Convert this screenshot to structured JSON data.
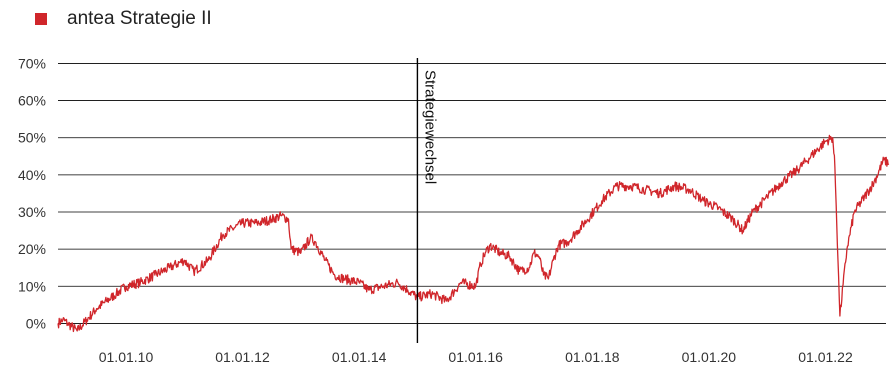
{
  "colors": {
    "series": "#d0262b",
    "title": "#1d5f7a",
    "grid": "#000000",
    "marker": "#000000"
  },
  "chart_data": {
    "type": "line",
    "title": "",
    "xlabel": "",
    "ylabel": "",
    "x_range": [
      "2008-11-01",
      "2023-01-15"
    ],
    "ylim": [
      -5,
      72
    ],
    "y_ticks": [
      0,
      10,
      20,
      30,
      40,
      50,
      60,
      70
    ],
    "y_tick_labels": [
      "0%",
      "10%",
      "20%",
      "30%",
      "40%",
      "50%",
      "60%",
      "70%"
    ],
    "x_ticks": [
      "2010-01-01",
      "2012-01-01",
      "2014-01-01",
      "2016-01-01",
      "2018-01-01",
      "2020-01-01",
      "2022-01-01"
    ],
    "x_tick_labels": [
      "01.01.10",
      "01.01.12",
      "01.01.14",
      "01.01.16",
      "01.01.18",
      "01.01.20",
      "01.01.22"
    ],
    "grid": "horizontal",
    "legend_position": "top-left",
    "annotations": [
      {
        "x": "2015-01-01",
        "label": "Strategiewechsel",
        "orientation": "vertical"
      }
    ],
    "series": [
      {
        "name": "antea Strategie II",
        "points": [
          [
            "2008-11-01",
            0
          ],
          [
            "2008-12-01",
            1
          ],
          [
            "2009-01-01",
            0
          ],
          [
            "2009-03-01",
            -2
          ],
          [
            "2009-05-01",
            1
          ],
          [
            "2009-07-01",
            4
          ],
          [
            "2009-09-01",
            6
          ],
          [
            "2009-11-01",
            8
          ],
          [
            "2010-01-01",
            10
          ],
          [
            "2010-04-01",
            11
          ],
          [
            "2010-07-01",
            13
          ],
          [
            "2010-10-01",
            15
          ],
          [
            "2011-01-01",
            17
          ],
          [
            "2011-03-01",
            14
          ],
          [
            "2011-06-01",
            17
          ],
          [
            "2011-09-01",
            24
          ],
          [
            "2012-01-01",
            27
          ],
          [
            "2012-04-01",
            27
          ],
          [
            "2012-07-01",
            28
          ],
          [
            "2012-09-01",
            29
          ],
          [
            "2012-10-15",
            28
          ],
          [
            "2012-11-01",
            20
          ],
          [
            "2013-01-01",
            19
          ],
          [
            "2013-03-01",
            23
          ],
          [
            "2013-04-01",
            22
          ],
          [
            "2013-06-01",
            17
          ],
          [
            "2013-08-01",
            13
          ],
          [
            "2013-10-01",
            12
          ],
          [
            "2014-01-01",
            11
          ],
          [
            "2014-03-01",
            9
          ],
          [
            "2014-06-01",
            10
          ],
          [
            "2014-09-01",
            11
          ],
          [
            "2014-11-01",
            9
          ],
          [
            "2015-01-01",
            7
          ],
          [
            "2015-04-01",
            8
          ],
          [
            "2015-07-01",
            6
          ],
          [
            "2015-10-01",
            11
          ],
          [
            "2016-01-01",
            10
          ],
          [
            "2016-02-01",
            16
          ],
          [
            "2016-03-01",
            19
          ],
          [
            "2016-04-01",
            21
          ],
          [
            "2016-06-01",
            19
          ],
          [
            "2016-08-01",
            18
          ],
          [
            "2016-10-01",
            14
          ],
          [
            "2016-12-01",
            15
          ],
          [
            "2017-01-01",
            19
          ],
          [
            "2017-02-01",
            18
          ],
          [
            "2017-03-01",
            13
          ],
          [
            "2017-04-01",
            12
          ],
          [
            "2017-05-01",
            17
          ],
          [
            "2017-06-01",
            21
          ],
          [
            "2017-08-01",
            22
          ],
          [
            "2017-10-01",
            25
          ],
          [
            "2017-12-01",
            28
          ],
          [
            "2018-03-01",
            33
          ],
          [
            "2018-06-01",
            37
          ],
          [
            "2018-09-01",
            37
          ],
          [
            "2018-12-01",
            36
          ],
          [
            "2019-03-01",
            35
          ],
          [
            "2019-06-01",
            37
          ],
          [
            "2019-09-01",
            36
          ],
          [
            "2019-12-01",
            33
          ],
          [
            "2020-03-01",
            31
          ],
          [
            "2020-06-01",
            28
          ],
          [
            "2020-08-01",
            25
          ],
          [
            "2020-10-01",
            30
          ],
          [
            "2021-01-01",
            34
          ],
          [
            "2021-04-01",
            38
          ],
          [
            "2021-07-01",
            41
          ],
          [
            "2021-10-01",
            45
          ],
          [
            "2022-01-01",
            49
          ],
          [
            "2022-02-15",
            50
          ],
          [
            "2022-03-01",
            42
          ],
          [
            "2022-04-01",
            2
          ],
          [
            "2022-05-15",
            20
          ],
          [
            "2022-07-01",
            30
          ],
          [
            "2022-09-01",
            34
          ],
          [
            "2022-11-01",
            38
          ],
          [
            "2023-01-01",
            44
          ],
          [
            "2023-02-01",
            43
          ]
        ]
      }
    ]
  }
}
